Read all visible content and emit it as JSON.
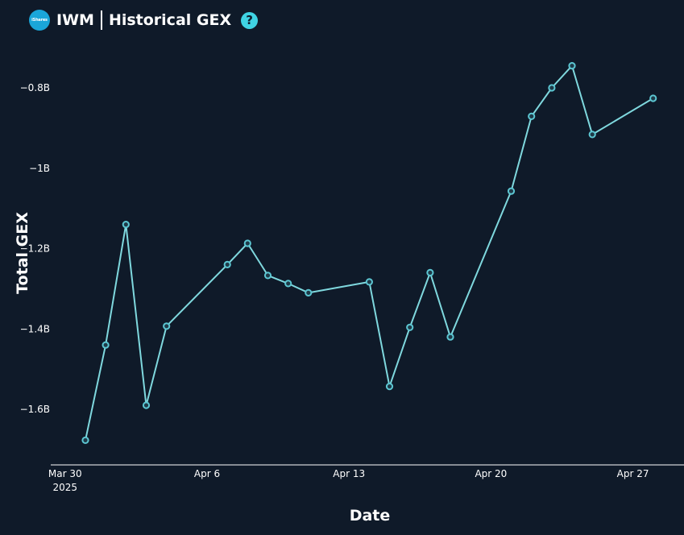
{
  "header": {
    "logo_text": "iShares",
    "symbol": "IWM",
    "title": "Historical GEX",
    "help_icon": "question-circle-icon",
    "logo_icon": "ishares-logo-icon"
  },
  "colors": {
    "background": "#0f1a29",
    "line": "#7fd8de",
    "marker": "#5cc6d2",
    "axis": "#ffffff",
    "help_icon": "#3fd3e3",
    "logo": "#1aa6d9"
  },
  "chart_data": {
    "type": "line",
    "title": "IWM | Historical GEX",
    "xlabel": "Date",
    "ylabel": "Total GEX",
    "x_tick_labels": [
      {
        "date": "2025-03-30",
        "label": "Mar 30",
        "sublabel": "2025"
      },
      {
        "date": "2025-04-06",
        "label": "Apr 6",
        "sublabel": ""
      },
      {
        "date": "2025-04-13",
        "label": "Apr 13",
        "sublabel": ""
      },
      {
        "date": "2025-04-20",
        "label": "Apr 20",
        "sublabel": ""
      },
      {
        "date": "2025-04-27",
        "label": "Apr 27",
        "sublabel": ""
      }
    ],
    "y_ticks": [
      {
        "value": -1.6,
        "label": "−1.6B"
      },
      {
        "value": -1.4,
        "label": "−1.4B"
      },
      {
        "value": -1.2,
        "label": "−1.2B"
      },
      {
        "value": -1.0,
        "label": "−1B"
      },
      {
        "value": -0.8,
        "label": "−0.8B"
      }
    ],
    "y_unit": "billions",
    "xlim": [
      "2025-03-30",
      "2025-04-28"
    ],
    "ylim": [
      -1.73,
      -0.7
    ],
    "grid": false,
    "series": [
      {
        "name": "",
        "points": [
          {
            "date": "2025-03-31",
            "value": -1.677
          },
          {
            "date": "2025-04-01",
            "value": -1.44
          },
          {
            "date": "2025-04-02",
            "value": -1.14
          },
          {
            "date": "2025-04-03",
            "value": -1.59
          },
          {
            "date": "2025-04-04",
            "value": -1.393
          },
          {
            "date": "2025-04-07",
            "value": -1.24
          },
          {
            "date": "2025-04-08",
            "value": -1.187
          },
          {
            "date": "2025-04-09",
            "value": -1.267
          },
          {
            "date": "2025-04-10",
            "value": -1.287
          },
          {
            "date": "2025-04-11",
            "value": -1.31
          },
          {
            "date": "2025-04-14",
            "value": -1.283
          },
          {
            "date": "2025-04-15",
            "value": -1.543
          },
          {
            "date": "2025-04-16",
            "value": -1.396
          },
          {
            "date": "2025-04-17",
            "value": -1.26
          },
          {
            "date": "2025-04-18",
            "value": -1.42
          },
          {
            "date": "2025-04-21",
            "value": -1.057
          },
          {
            "date": "2025-04-22",
            "value": -0.871
          },
          {
            "date": "2025-04-23",
            "value": -0.8
          },
          {
            "date": "2025-04-24",
            "value": -0.745
          },
          {
            "date": "2025-04-25",
            "value": -0.916
          },
          {
            "date": "2025-04-28",
            "value": -0.826
          }
        ]
      }
    ]
  }
}
